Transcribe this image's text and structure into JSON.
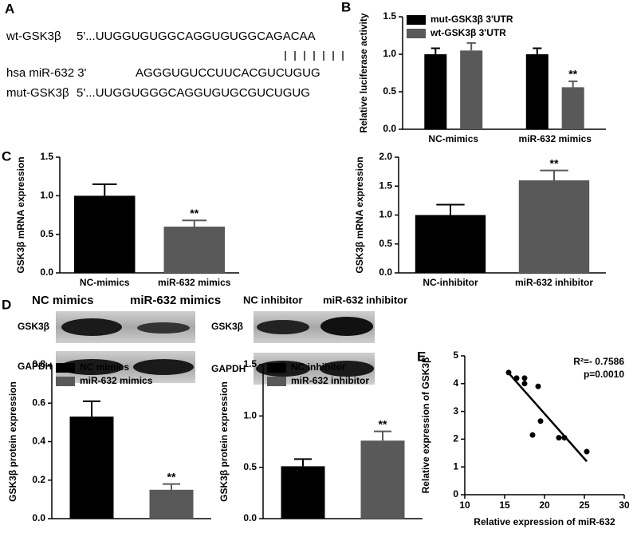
{
  "panel_labels": [
    "A",
    "B",
    "C",
    "D",
    "E"
  ],
  "sequence_panel": {
    "rows": [
      {
        "label": "wt-GSK3β",
        "sequence": "5'...UUGGUGUGGCAGGUGUGGCAGACAA"
      },
      {
        "label": "hsa miR-632 3'",
        "sequence": "AGGGUGUCCUUCACGUCUGUG"
      },
      {
        "label": "mut-GSK3β",
        "sequence": "5'...UUGGUGGGCAGGUGUGCGUCUGUG"
      }
    ]
  },
  "blots": {
    "headers": [
      "NC mimics",
      "miR-632 mimics",
      "NC inhibitor",
      "miR-632 inhibitor"
    ],
    "left_rows": [
      "GSK3β",
      "GAPDH"
    ],
    "right_rows": [
      "GSK3β",
      "GAPDH"
    ]
  },
  "chart_data": [
    {
      "type": "bar",
      "ylabel": "Relative luciferase activity",
      "categories": [
        "NC-mimics",
        "miR-632 mimics"
      ],
      "series": [
        {
          "name": "mut-GSK3β 3'UTR",
          "color": "#000000",
          "values": [
            1.0,
            1.0
          ],
          "errors": [
            0.08,
            0.08
          ]
        },
        {
          "name": "wt-GSK3β 3'UTR",
          "color": "#595959",
          "values": [
            1.05,
            0.56
          ],
          "errors": [
            0.1,
            0.08
          ]
        }
      ],
      "ylim": [
        0,
        1.5
      ],
      "yticks": [
        {
          "value": 0,
          "label": "0.0"
        },
        0.5,
        {
          "value": 1,
          "label": "1.0"
        },
        1.5
      ],
      "legend": "upper left",
      "significance": "**"
    },
    {
      "type": "bar",
      "ylabel": "GSK3β mRNA expression",
      "categories": [
        "NC-mimics",
        "miR-632 mimics"
      ],
      "values": [
        1.0,
        0.6
      ],
      "errors": [
        0.15,
        0.08
      ],
      "colors": [
        "#000000",
        "#595959"
      ],
      "ylim": [
        0,
        1.5
      ],
      "yticks": [
        {
          "value": 0,
          "label": "0.0"
        },
        0.5,
        {
          "value": 1,
          "label": "1.0"
        },
        1.5
      ],
      "significance": "**"
    },
    {
      "type": "bar",
      "ylabel": "GSK3β mRNA expression",
      "categories": [
        "NC-inhibitor",
        "miR-632 inhibitor"
      ],
      "values": [
        1.0,
        1.6
      ],
      "errors": [
        0.18,
        0.17
      ],
      "colors": [
        "#000000",
        "#595959"
      ],
      "ylim": [
        0,
        2
      ],
      "yticks": [
        {
          "value": 0,
          "label": "0.0"
        },
        0.5,
        {
          "value": 1,
          "label": "1.0"
        },
        1.5,
        {
          "value": 2,
          "label": "2.0"
        }
      ],
      "significance": "**"
    },
    {
      "type": "bar",
      "ylabel": "GSK3β protein expression",
      "series": [
        {
          "name": "NC mimics",
          "color": "#000000",
          "values": [
            0.53
          ],
          "errors": [
            0.08
          ]
        },
        {
          "name": "miR-632 mimics",
          "color": "#595959",
          "values": [
            0.15
          ],
          "errors": [
            0.03
          ]
        }
      ],
      "ylim": [
        0,
        0.8
      ],
      "yticks": [
        {
          "value": 0,
          "label": "0.0"
        },
        0.2,
        0.4,
        0.6,
        0.8
      ],
      "legend": "upper left",
      "significance": "**"
    },
    {
      "type": "bar",
      "ylabel": "GSK3β protein expression",
      "series": [
        {
          "name": "NC inhibitor",
          "color": "#000000",
          "values": [
            0.51
          ],
          "errors": [
            0.07
          ]
        },
        {
          "name": "miR-632 inhibitor",
          "color": "#595959",
          "values": [
            0.76
          ],
          "errors": [
            0.09
          ]
        }
      ],
      "ylim": [
        0,
        1.5
      ],
      "yticks": [
        {
          "value": 0,
          "label": "0.0"
        },
        0.5,
        {
          "value": 1,
          "label": "1.0"
        },
        1.5
      ],
      "legend": "upper left",
      "significance": "**"
    },
    {
      "type": "scatter",
      "xlabel": "Relative expression of miR-632",
      "ylabel": "Relative expression of GSK3β",
      "x": [
        15.5,
        16.5,
        17.5,
        17.5,
        19.2,
        19.5,
        18.5,
        21.8,
        22.5,
        25.3
      ],
      "y": [
        4.4,
        4.2,
        4.2,
        4.0,
        3.9,
        2.65,
        2.15,
        2.05,
        2.05,
        1.55
      ],
      "trendline": {
        "x": [
          15.5,
          25.3
        ],
        "y": [
          4.38,
          1.2
        ]
      },
      "xlim": [
        10,
        30
      ],
      "xticks": [
        10,
        15,
        20,
        25,
        30
      ],
      "ylim": [
        0,
        5
      ],
      "yticks": [
        0,
        1,
        2,
        3,
        4,
        5
      ],
      "annotations": [
        "R²=- 0.7586",
        "p=0.0010"
      ],
      "color": "#000000"
    }
  ]
}
